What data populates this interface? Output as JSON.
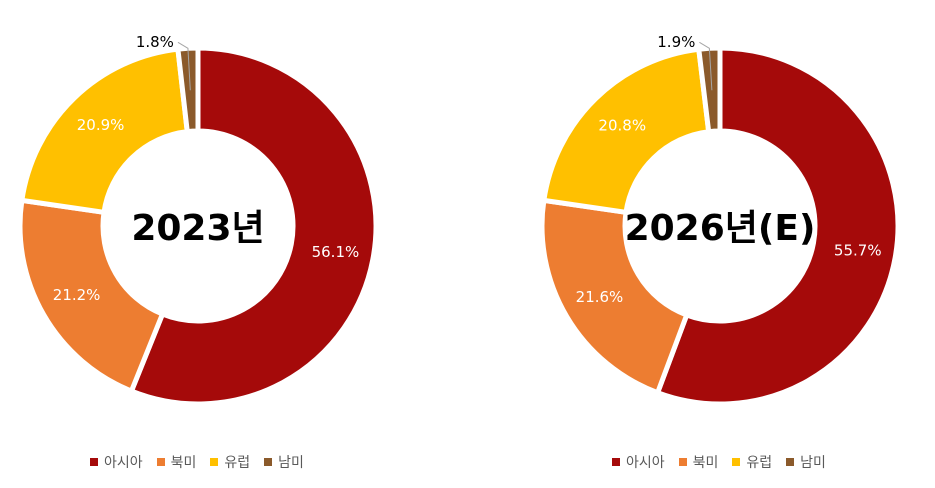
{
  "chart_data": [
    {
      "type": "pie",
      "title": "2023년",
      "categories": [
        "아시아",
        "북미",
        "유럽",
        "남미"
      ],
      "values": [
        56.1,
        21.2,
        20.9,
        1.8
      ],
      "labels": [
        "56.1%",
        "21.2%",
        "20.9%",
        "1.8%"
      ],
      "colors": [
        "#A50A0A",
        "#ED7D31",
        "#FFC000",
        "#8B5A2B"
      ],
      "legend_position": "bottom"
    },
    {
      "type": "pie",
      "title": "2026년(E)",
      "categories": [
        "아시아",
        "북미",
        "유럽",
        "남미"
      ],
      "values": [
        55.7,
        21.6,
        20.8,
        1.9
      ],
      "labels": [
        "55.7%",
        "21.6%",
        "20.8%",
        "1.9%"
      ],
      "colors": [
        "#A50A0A",
        "#ED7D31",
        "#FFC000",
        "#8B5A2B"
      ],
      "legend_position": "bottom"
    }
  ]
}
